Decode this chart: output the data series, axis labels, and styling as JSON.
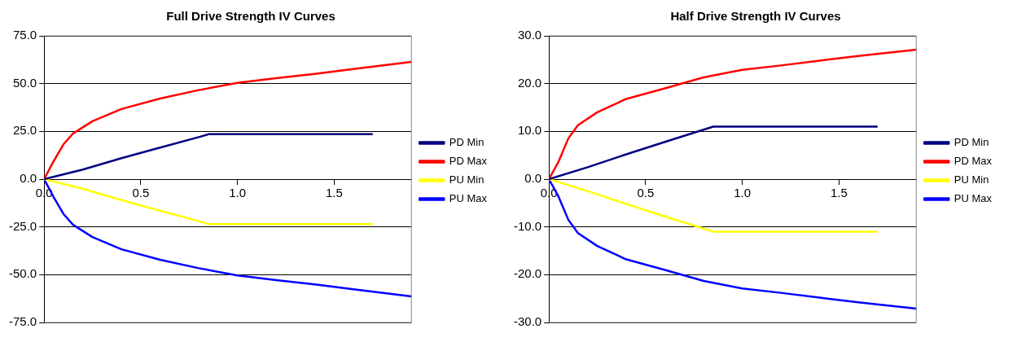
{
  "chart_data": [
    {
      "type": "line",
      "title": "Full Drive Strength IV Curves",
      "xlim": [
        0,
        1.9
      ],
      "xticks": [
        {
          "value": 0,
          "label": "0.0"
        },
        0.5,
        {
          "value": 1,
          "label": "1.0"
        },
        {
          "value": 1.5,
          "label": "1.5"
        }
      ],
      "ylim": [
        -75,
        75
      ],
      "yticks": [
        {
          "value": -75,
          "label": "-75.0"
        },
        {
          "value": -50,
          "label": "-50.0"
        },
        {
          "value": -25,
          "label": "-25.0"
        },
        {
          "value": 0,
          "label": "0.0"
        },
        {
          "value": 25,
          "label": "25.0"
        },
        {
          "value": 50,
          "label": "50.0"
        },
        {
          "value": 75,
          "label": "75.0"
        }
      ],
      "grid": "y",
      "legend": "right",
      "marker": "none",
      "line_style": "solid",
      "series": [
        {
          "name": "PD Min",
          "color": "#000080",
          "x": [
            0,
            0.2,
            0.4,
            0.6,
            0.8,
            0.85,
            1.7
          ],
          "values": [
            0,
            5,
            11,
            16.5,
            22,
            23.5,
            23.5
          ]
        },
        {
          "name": "PD Max",
          "color": "#ff0000",
          "x": [
            0,
            0.05,
            0.1,
            0.15,
            0.25,
            0.4,
            0.6,
            0.8,
            1.0,
            1.2,
            1.4,
            1.6,
            1.9
          ],
          "values": [
            0,
            9.5,
            18.2,
            23.9,
            30.3,
            36.7,
            42.2,
            46.6,
            50.4,
            52.8,
            55.1,
            57.6,
            61.4
          ]
        },
        {
          "name": "PU Min",
          "color": "#ffff00",
          "x": [
            0,
            0.2,
            0.4,
            0.6,
            0.8,
            0.85,
            1.7
          ],
          "values": [
            0,
            -5,
            -11,
            -16.5,
            -22,
            -23.5,
            -23.5
          ]
        },
        {
          "name": "PU Max",
          "color": "#0000ff",
          "x": [
            0,
            0.05,
            0.1,
            0.15,
            0.25,
            0.4,
            0.6,
            0.8,
            1.0,
            1.2,
            1.4,
            1.6,
            1.9
          ],
          "values": [
            0,
            -9.5,
            -18.2,
            -23.9,
            -30.3,
            -36.7,
            -42.2,
            -46.6,
            -50.4,
            -52.8,
            -55.1,
            -57.6,
            -61.4
          ]
        }
      ]
    },
    {
      "type": "line",
      "title": "Half Drive Strength IV Curves",
      "xlim": [
        0,
        1.9
      ],
      "xticks": [
        {
          "value": 0,
          "label": "0.0"
        },
        0.5,
        {
          "value": 1,
          "label": "1.0"
        },
        {
          "value": 1.5,
          "label": "1.5"
        }
      ],
      "ylim": [
        -30,
        30
      ],
      "yticks": [
        {
          "value": -30,
          "label": "-30.0"
        },
        {
          "value": -20,
          "label": "-20.0"
        },
        {
          "value": -10,
          "label": "-10.0"
        },
        {
          "value": 0,
          "label": "0.0"
        },
        {
          "value": 10,
          "label": "10.0"
        },
        {
          "value": 20,
          "label": "20.0"
        },
        {
          "value": 30,
          "label": "30.0"
        }
      ],
      "grid": "y",
      "legend": "right",
      "marker": "none",
      "line_style": "solid",
      "series": [
        {
          "name": "PD Min",
          "color": "#000080",
          "x": [
            0,
            0.2,
            0.4,
            0.6,
            0.85,
            1.7
          ],
          "values": [
            0,
            2.5,
            5.2,
            7.8,
            11,
            11
          ]
        },
        {
          "name": "PD Max",
          "color": "#ff0000",
          "x": [
            0,
            0.05,
            0.1,
            0.15,
            0.25,
            0.4,
            0.6,
            0.8,
            1.0,
            1.2,
            1.4,
            1.6,
            1.9
          ],
          "values": [
            0,
            3.7,
            8.5,
            11.3,
            14,
            16.8,
            19,
            21.3,
            22.9,
            23.8,
            24.8,
            25.8,
            27.1
          ]
        },
        {
          "name": "PU Min",
          "color": "#ffff00",
          "x": [
            0,
            0.2,
            0.4,
            0.6,
            0.85,
            1.7
          ],
          "values": [
            0,
            -2.5,
            -5.2,
            -7.8,
            -11,
            -11
          ]
        },
        {
          "name": "PU Max",
          "color": "#0000ff",
          "x": [
            0,
            0.05,
            0.1,
            0.15,
            0.25,
            0.4,
            0.6,
            0.8,
            1.0,
            1.2,
            1.4,
            1.6,
            1.9
          ],
          "values": [
            0,
            -3.7,
            -8.5,
            -11.3,
            -14,
            -16.8,
            -19,
            -21.3,
            -22.9,
            -23.8,
            -24.8,
            -25.8,
            -27.1
          ]
        }
      ]
    }
  ]
}
